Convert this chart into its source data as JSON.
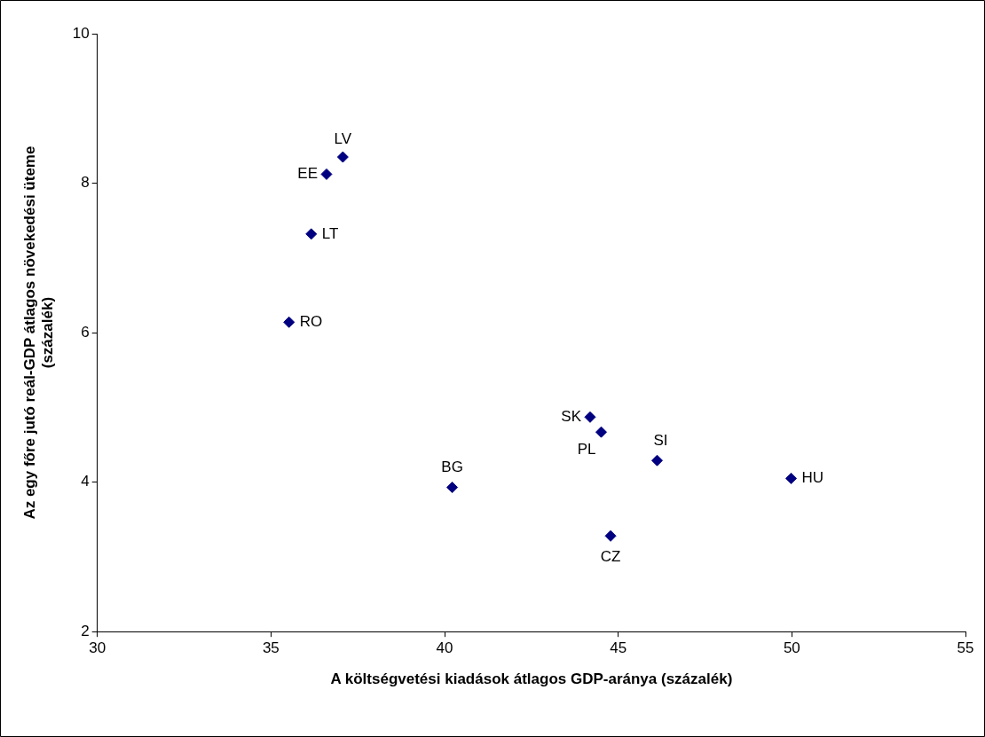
{
  "chart_data": {
    "type": "scatter",
    "xlabel": "A költségvetési kiadások átlagos GDP-aránya (százalék)",
    "ylabel": "Az egy főre jutó reál-GDP átlagos növekedési üteme\n(százalék)",
    "series": [
      {
        "color": "#000080",
        "x": [
          37.07,
          36.6,
          36.16,
          35.52,
          44.19,
          44.51,
          46.12,
          49.98,
          40.22,
          44.78
        ],
        "values": [
          8.35,
          8.12,
          7.32,
          6.14,
          4.87,
          4.67,
          4.29,
          4.05,
          3.93,
          3.28
        ]
      }
    ],
    "annotations": [
      {
        "text": "LV",
        "x": 37.07,
        "y": 8.35
      },
      {
        "text": "EE",
        "x": 36.6,
        "y": 8.12
      },
      {
        "text": "LT",
        "x": 36.16,
        "y": 7.32
      },
      {
        "text": "RO",
        "x": 35.52,
        "y": 6.14
      },
      {
        "text": "SK",
        "x": 44.19,
        "y": 4.87
      },
      {
        "text": "PL",
        "x": 44.51,
        "y": 4.67
      },
      {
        "text": "SI",
        "x": 46.12,
        "y": 4.29
      },
      {
        "text": "HU",
        "x": 49.98,
        "y": 4.05
      },
      {
        "text": "BG",
        "x": 40.22,
        "y": 3.93
      },
      {
        "text": "CZ",
        "x": 44.78,
        "y": 3.28
      }
    ],
    "xlim": [
      30,
      55
    ],
    "xticks": [
      30,
      35,
      40,
      45,
      50,
      55
    ],
    "ylim": [
      2,
      10
    ],
    "yticks": [
      2,
      4,
      6,
      8,
      10
    ],
    "marker": "diamond",
    "grid": false,
    "legend": false
  }
}
